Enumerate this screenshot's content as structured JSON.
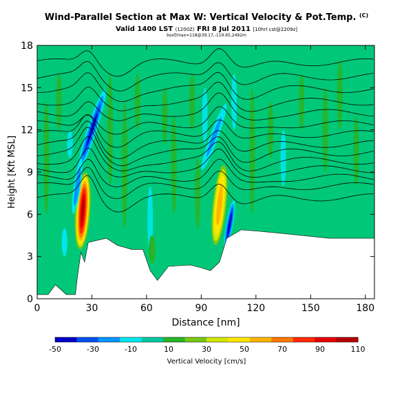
{
  "header": {
    "title": "Wind-Parallel Section at Max W: Vertical Velocity & Pot.Temp.",
    "title_mark": "(C)",
    "valid_main": "Valid 1400 LST",
    "valid_small_1": "(1200Z)",
    "valid_date": "FRI 8 Jul 2011",
    "valid_small_2": "[10hrl cst@2209z]",
    "note": "boxf/max=118@39.17,-119.65,2492m"
  },
  "chart_data": {
    "type": "heatmap",
    "title": "Wind-Parallel Section at Max W: Vertical Velocity & Pot.Temp.",
    "xlabel": "Distance [nm]",
    "ylabel": "Height [Kft MSL]",
    "xlim": [
      0,
      185
    ],
    "ylim": [
      0,
      18
    ],
    "x_ticks": [
      "0",
      "30",
      "60",
      "90",
      "120",
      "150",
      "180"
    ],
    "y_ticks": [
      "0",
      "3",
      "6",
      "9",
      "12",
      "15",
      "18"
    ],
    "colorbar": {
      "label": "Vertical Velocity [cm/s]",
      "tick_labels": [
        "-50",
        "-30",
        "-10",
        "10",
        "30",
        "50",
        "70",
        "90",
        "110"
      ],
      "colors": [
        "#0000c8",
        "#0050f0",
        "#0096ff",
        "#00e6f0",
        "#00c8a0",
        "#28b428",
        "#78c814",
        "#d2e600",
        "#ffe600",
        "#ffb400",
        "#ff7800",
        "#ff2800",
        "#e60000",
        "#b40000"
      ]
    },
    "background_value_color": "#00c878",
    "features": [
      {
        "name": "updraft",
        "x": 25,
        "y_range": [
          4,
          8
        ],
        "max": 110
      },
      {
        "name": "updraft",
        "x": 100,
        "y_range": [
          4,
          9
        ],
        "max": 55
      },
      {
        "name": "downdraft",
        "x": 30,
        "y_range": [
          9,
          14
        ],
        "min": -40
      },
      {
        "name": "downdraft",
        "x": 105,
        "y_range": [
          4,
          7
        ],
        "min": -50
      }
    ],
    "terrain": [
      [
        0,
        0.3
      ],
      [
        6,
        0.3
      ],
      [
        10,
        1.0
      ],
      [
        16,
        0.3
      ],
      [
        21,
        0.3
      ],
      [
        22,
        1.5
      ],
      [
        24,
        3.3
      ],
      [
        26,
        2.6
      ],
      [
        28,
        4.0
      ],
      [
        38,
        4.3
      ],
      [
        44,
        3.8
      ],
      [
        52,
        3.5
      ],
      [
        58,
        3.5
      ],
      [
        62,
        2.0
      ],
      [
        66,
        1.3
      ],
      [
        72,
        2.3
      ],
      [
        84,
        2.4
      ],
      [
        90,
        2.2
      ],
      [
        95,
        2.0
      ],
      [
        100,
        2.6
      ],
      [
        104,
        4.3
      ],
      [
        112,
        4.9
      ],
      [
        130,
        4.7
      ],
      [
        160,
        4.3
      ],
      [
        185,
        4.3
      ]
    ]
  }
}
